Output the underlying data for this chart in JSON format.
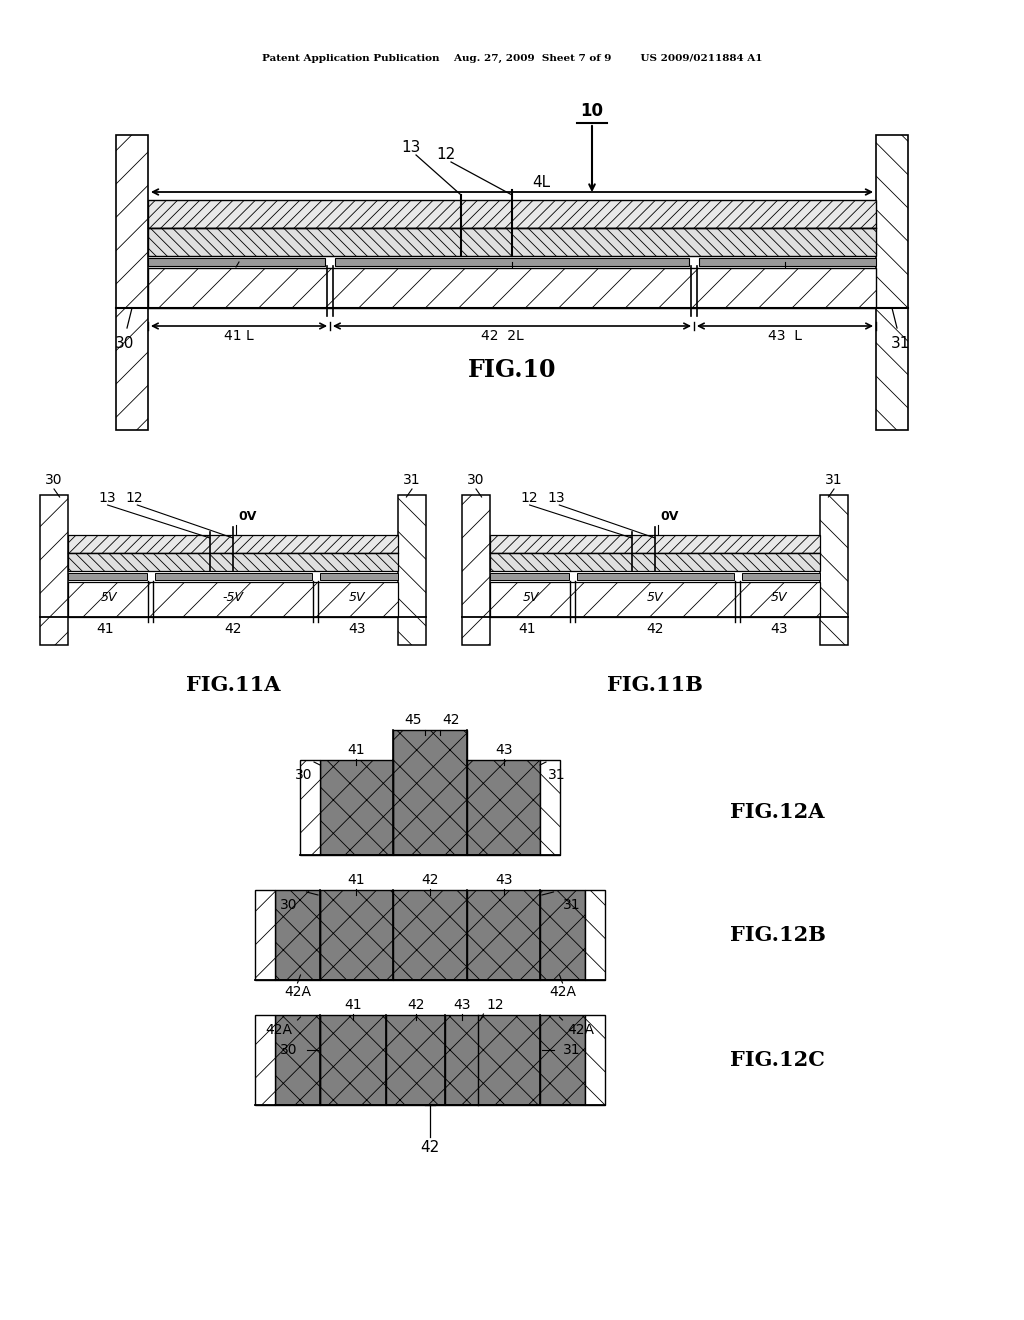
{
  "bg_color": "#ffffff",
  "fig_width": 10.24,
  "fig_height": 13.2,
  "header": "Patent Application Publication    Aug. 27, 2009  Sheet 7 of 9        US 2009/0211884 A1"
}
